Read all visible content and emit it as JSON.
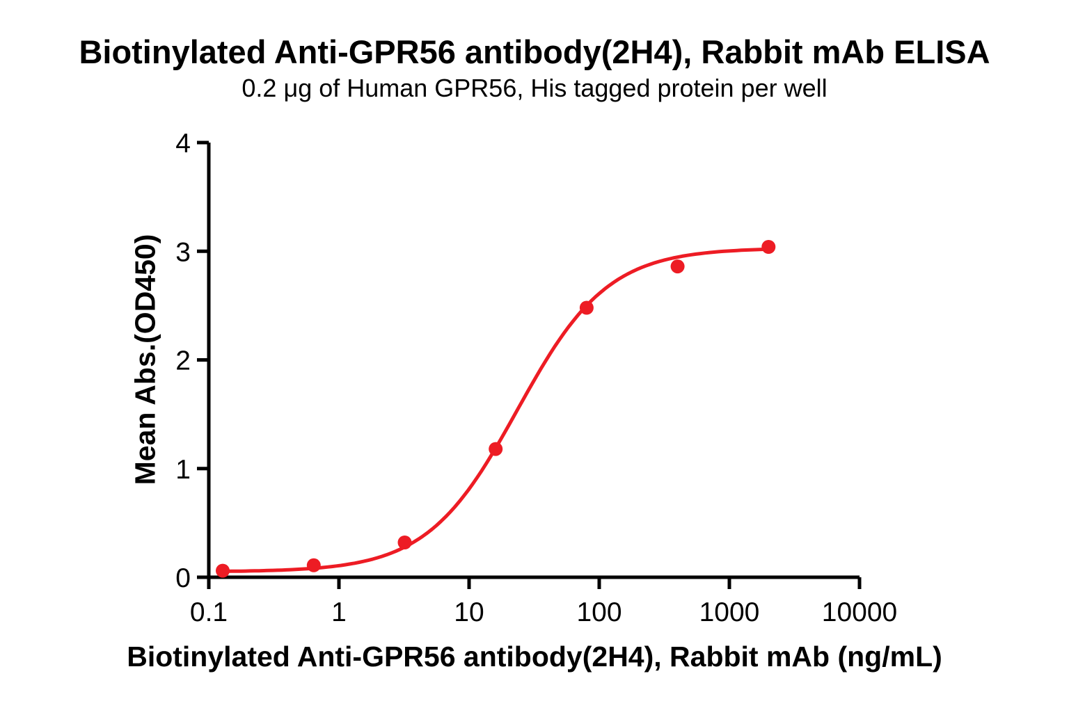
{
  "chart_data": {
    "type": "scatter",
    "title": "Biotinylated Anti-GPR56 antibody(2H4), Rabbit mAb ELISA",
    "subtitle": "0.2 μg of Human GPR56, His tagged protein per well",
    "xlabel": "Biotinylated Anti-GPR56 antibody(2H4), Rabbit mAb (ng/mL)",
    "ylabel": "Mean Abs.(OD450)",
    "x_scale": "log10",
    "xlim": [
      0.1,
      10000
    ],
    "ylim": [
      0,
      4
    ],
    "x_tick_values": [
      0.1,
      1,
      10,
      100,
      1000,
      10000
    ],
    "x_tick_labels": [
      "0.1",
      "1",
      "10",
      "100",
      "1000",
      "10000"
    ],
    "y_tick_values": [
      0,
      1,
      2,
      3,
      4
    ],
    "y_tick_labels": [
      "0",
      "1",
      "2",
      "3",
      "4"
    ],
    "grid": false,
    "legend": "none",
    "x": [
      0.128,
      0.64,
      3.2,
      16,
      80,
      400,
      2000
    ],
    "y": [
      0.06,
      0.11,
      0.32,
      1.18,
      2.48,
      2.86,
      3.04
    ],
    "fit_curve": {
      "model": "4PL",
      "bottom": 0.05,
      "top": 3.03,
      "ec50": 23.5,
      "hill": 1.25,
      "x_start": 0.128,
      "x_end": 2000
    },
    "marker_color": "#ED1C24",
    "line_color": "#ED1C24",
    "axis_color": "#000000",
    "text_color": "#000000"
  }
}
